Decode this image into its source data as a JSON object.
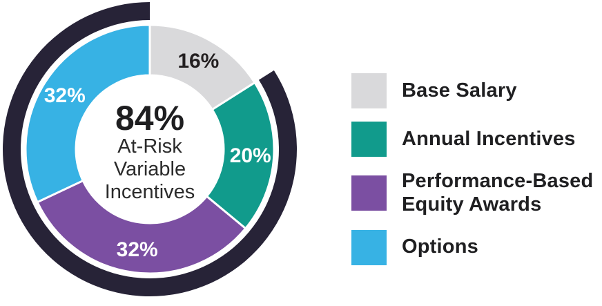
{
  "chart_data": {
    "type": "pie",
    "subtype": "donut",
    "title": "",
    "categories": [
      "Base Salary",
      "Annual Incentives",
      "Performance-Based Equity Awards",
      "Options"
    ],
    "values": [
      16,
      20,
      32,
      32
    ],
    "slice_labels": [
      "16%",
      "20%",
      "32%",
      "32%"
    ],
    "colors": [
      "#d9d9db",
      "#119b8c",
      "#7b4fa2",
      "#37b2e4"
    ],
    "slice_label_colors": [
      "#231f20",
      "#ffffff",
      "#ffffff",
      "#ffffff"
    ],
    "direction": "clockwise",
    "start_angle_deg_from_top": 0,
    "legend_position": "right",
    "center_label": {
      "value": "84%",
      "lines": [
        "At-Risk",
        "Variable",
        "Incentives"
      ],
      "value_color": "#1e1e20",
      "lines_color": "#2b2b2b"
    },
    "highlight_arc": {
      "meaning": "84% At-Risk Variable Incentives coverage",
      "start_percent": 16,
      "end_percent": 100,
      "color": "#272337"
    }
  },
  "legend": {
    "items": [
      {
        "label": "Base Salary",
        "color": "#d9d9db"
      },
      {
        "label": "Annual Incentives",
        "color": "#119b8c"
      },
      {
        "label": "Performance-Based Equity Awards",
        "color": "#7b4fa2"
      },
      {
        "label": "Options",
        "color": "#37b2e4"
      }
    ]
  }
}
